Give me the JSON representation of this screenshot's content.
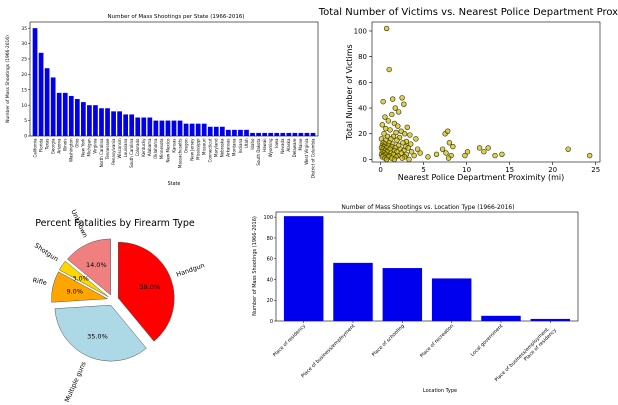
{
  "chart_data": [
    {
      "type": "bar",
      "title": "Number of Mass Shootings per State (1966-2016)",
      "xlabel": "State",
      "ylabel": "Number of Mass Shootings (1966-2016)",
      "ylim": [
        0,
        37
      ],
      "yticks": [
        0,
        5,
        10,
        15,
        20,
        25,
        30,
        35
      ],
      "color": "#0000ee",
      "categories": [
        "California",
        "Florida",
        "Texas",
        "Georgia",
        "Arizona",
        "Illinois",
        "Washington",
        "Ohio",
        "New York",
        "Michigan",
        "Virginia",
        "North Carolina",
        "Tennessee",
        "Pennsylvania",
        "Wisconsin",
        "Louisiana",
        "South Carolina",
        "Colorado",
        "Kentucky",
        "Alabama",
        "Oklahoma",
        "Minnesota",
        "New Mexico",
        "Kansas",
        "Massachusetts",
        "Oregon",
        "New Jersey",
        "Mississippi",
        "Missouri",
        "Connecticut",
        "Maryland",
        "Nebraska",
        "Arkansas",
        "Montana",
        "Indiana",
        "Utah",
        "Idaho",
        "South Dakota",
        "Hawaii",
        "Wyoming",
        "Iowa",
        "Nevada",
        "Alaska",
        "Delaware",
        "Maine",
        "West Virginia",
        "District of Columbia"
      ],
      "values": [
        35,
        27,
        22,
        19,
        14,
        14,
        13,
        12,
        11,
        10,
        10,
        9,
        9,
        8,
        8,
        7,
        7,
        6,
        6,
        6,
        5,
        5,
        5,
        5,
        5,
        4,
        4,
        4,
        4,
        3,
        3,
        3,
        2,
        2,
        2,
        2,
        1,
        1,
        1,
        1,
        1,
        1,
        1,
        1,
        1,
        1,
        1
      ]
    },
    {
      "type": "scatter",
      "title": "Total Number of Victims vs. Nearest Police Department Proximity",
      "xlabel": "Nearest Police Department Proximity (mi)",
      "ylabel": "Total Number of Victims",
      "xlim": [
        -1,
        25.5
      ],
      "ylim": [
        -2,
        107
      ],
      "xticks": [
        0,
        5,
        10,
        15,
        20,
        25
      ],
      "yticks": [
        0,
        20,
        40,
        60,
        80,
        100
      ],
      "color": "#c8b400",
      "points": [
        [
          0.7,
          102
        ],
        [
          1.0,
          70
        ],
        [
          0.3,
          45
        ],
        [
          1.4,
          47
        ],
        [
          2.5,
          48
        ],
        [
          2.7,
          43
        ],
        [
          1.7,
          40
        ],
        [
          2.1,
          37
        ],
        [
          1.3,
          35
        ],
        [
          0.5,
          33
        ],
        [
          0.9,
          30
        ],
        [
          1.6,
          28
        ],
        [
          0.2,
          27
        ],
        [
          2.0,
          26
        ],
        [
          3.1,
          25
        ],
        [
          0.6,
          24
        ],
        [
          1.1,
          23
        ],
        [
          2.4,
          22
        ],
        [
          1.8,
          21
        ],
        [
          0.4,
          20
        ],
        [
          2.8,
          20
        ],
        [
          3.4,
          19
        ],
        [
          0.8,
          18
        ],
        [
          1.5,
          18
        ],
        [
          2.2,
          17
        ],
        [
          0.1,
          16
        ],
        [
          1.2,
          16
        ],
        [
          4.1,
          16
        ],
        [
          0.6,
          15
        ],
        [
          1.9,
          15
        ],
        [
          3.0,
          14
        ],
        [
          0.3,
          13
        ],
        [
          1.0,
          13
        ],
        [
          2.6,
          13
        ],
        [
          0.5,
          12
        ],
        [
          1.4,
          12
        ],
        [
          3.5,
          12
        ],
        [
          0.2,
          11
        ],
        [
          0.9,
          11
        ],
        [
          2.1,
          11
        ],
        [
          0.4,
          10
        ],
        [
          1.3,
          10
        ],
        [
          2.9,
          10
        ],
        [
          0.1,
          9
        ],
        [
          0.7,
          9
        ],
        [
          1.7,
          9
        ],
        [
          3.2,
          9
        ],
        [
          0.3,
          8
        ],
        [
          1.1,
          8
        ],
        [
          2.3,
          8
        ],
        [
          4.3,
          8
        ],
        [
          0.5,
          7
        ],
        [
          1.6,
          7
        ],
        [
          2.7,
          7
        ],
        [
          0.2,
          6
        ],
        [
          0.8,
          6
        ],
        [
          1.9,
          6
        ],
        [
          3.6,
          6
        ],
        [
          0.4,
          5
        ],
        [
          1.2,
          5
        ],
        [
          2.4,
          5
        ],
        [
          4.6,
          5
        ],
        [
          0.1,
          4
        ],
        [
          0.6,
          4
        ],
        [
          1.5,
          4
        ],
        [
          3.0,
          4
        ],
        [
          0.3,
          3
        ],
        [
          1.0,
          3
        ],
        [
          2.0,
          3
        ],
        [
          3.9,
          3
        ],
        [
          0.2,
          2
        ],
        [
          0.9,
          2
        ],
        [
          1.8,
          2
        ],
        [
          2.8,
          2
        ],
        [
          0.5,
          1
        ],
        [
          1.3,
          1
        ],
        [
          2.5,
          1
        ],
        [
          0.7,
          0
        ],
        [
          1.6,
          0
        ],
        [
          3.3,
          0
        ],
        [
          7.5,
          20
        ],
        [
          7.8,
          22
        ],
        [
          8.0,
          13
        ],
        [
          8.4,
          10
        ],
        [
          7.2,
          8
        ],
        [
          7.6,
          5
        ],
        [
          8.2,
          3
        ],
        [
          7.9,
          1
        ],
        [
          6.5,
          4
        ],
        [
          5.5,
          2
        ],
        [
          10.1,
          6
        ],
        [
          9.8,
          3
        ],
        [
          11.5,
          9
        ],
        [
          12.5,
          9
        ],
        [
          12.0,
          6
        ],
        [
          13.3,
          3
        ],
        [
          14.1,
          4
        ],
        [
          21.8,
          8
        ],
        [
          24.3,
          3
        ]
      ]
    },
    {
      "type": "pie",
      "title": "Percent Fatalities by Firearm Type",
      "slices": [
        {
          "label": "Unknown",
          "value": 14.0,
          "pct_label": "14.0%",
          "color": "#f08080",
          "explode": 0.1
        },
        {
          "label": "Shotgun",
          "value": 3.0,
          "pct_label": "3.0%",
          "color": "#ffd700",
          "explode": 0.1
        },
        {
          "label": "Rifle",
          "value": 9.0,
          "pct_label": "9.0%",
          "color": "#ffa500",
          "explode": 0.1
        },
        {
          "label": "Multiple guns",
          "value": 35.0,
          "pct_label": "35.0%",
          "color": "#add8e6",
          "explode": 0.1
        },
        {
          "label": "Handgun",
          "value": 39.0,
          "pct_label": "39.0%",
          "color": "#ff0000",
          "explode": 0.1
        }
      ]
    },
    {
      "type": "bar",
      "title": "Number of Mass Shootings vs. Location Type (1966-2016)",
      "xlabel": "Location Type",
      "ylabel": "Number of Mass Shootings (1966-2016)",
      "ylim": [
        0,
        105
      ],
      "yticks": [
        0,
        20,
        40,
        60,
        80,
        100
      ],
      "color": "#0000ee",
      "categories": [
        "Place of residency",
        "Place of business/employment",
        "Place of schooling",
        "Place of recreation",
        "Local government",
        "Place of business/employment, Place of residency"
      ],
      "values": [
        101,
        56,
        51,
        41,
        5,
        2
      ]
    }
  ]
}
